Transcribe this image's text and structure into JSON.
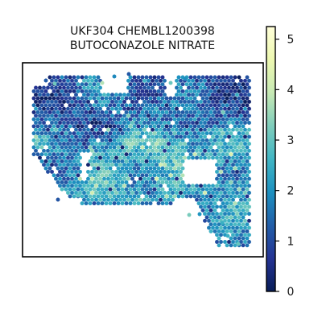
{
  "chart_data": {
    "type": "scatter",
    "subtype": "spatial hexagonal spot map",
    "title_lines": [
      "UKF304 CHEMBL1200398",
      "BUTOCONAZOLE NITRATE"
    ],
    "xlabel": "",
    "ylabel": "",
    "colorbar": {
      "colormap": "YlGnBu_r",
      "range": [
        0,
        5.25
      ],
      "ticks": [
        0,
        1,
        2,
        3,
        4,
        5
      ],
      "tick_labels": [
        "0",
        "1",
        "2",
        "3",
        "4",
        "5"
      ],
      "colors": [
        "#081d58",
        "#253494",
        "#225ea8",
        "#1d91c0",
        "#41b6c4",
        "#7fcdbb",
        "#c7e9b4",
        "#edf8b1",
        "#ffffd9"
      ]
    },
    "grid": false,
    "legend": "colorbar-right",
    "points_note": "tissue spots colored by predicted drug response score; values mostly 0.5–3.5 with scattered highs up to ~5"
  }
}
